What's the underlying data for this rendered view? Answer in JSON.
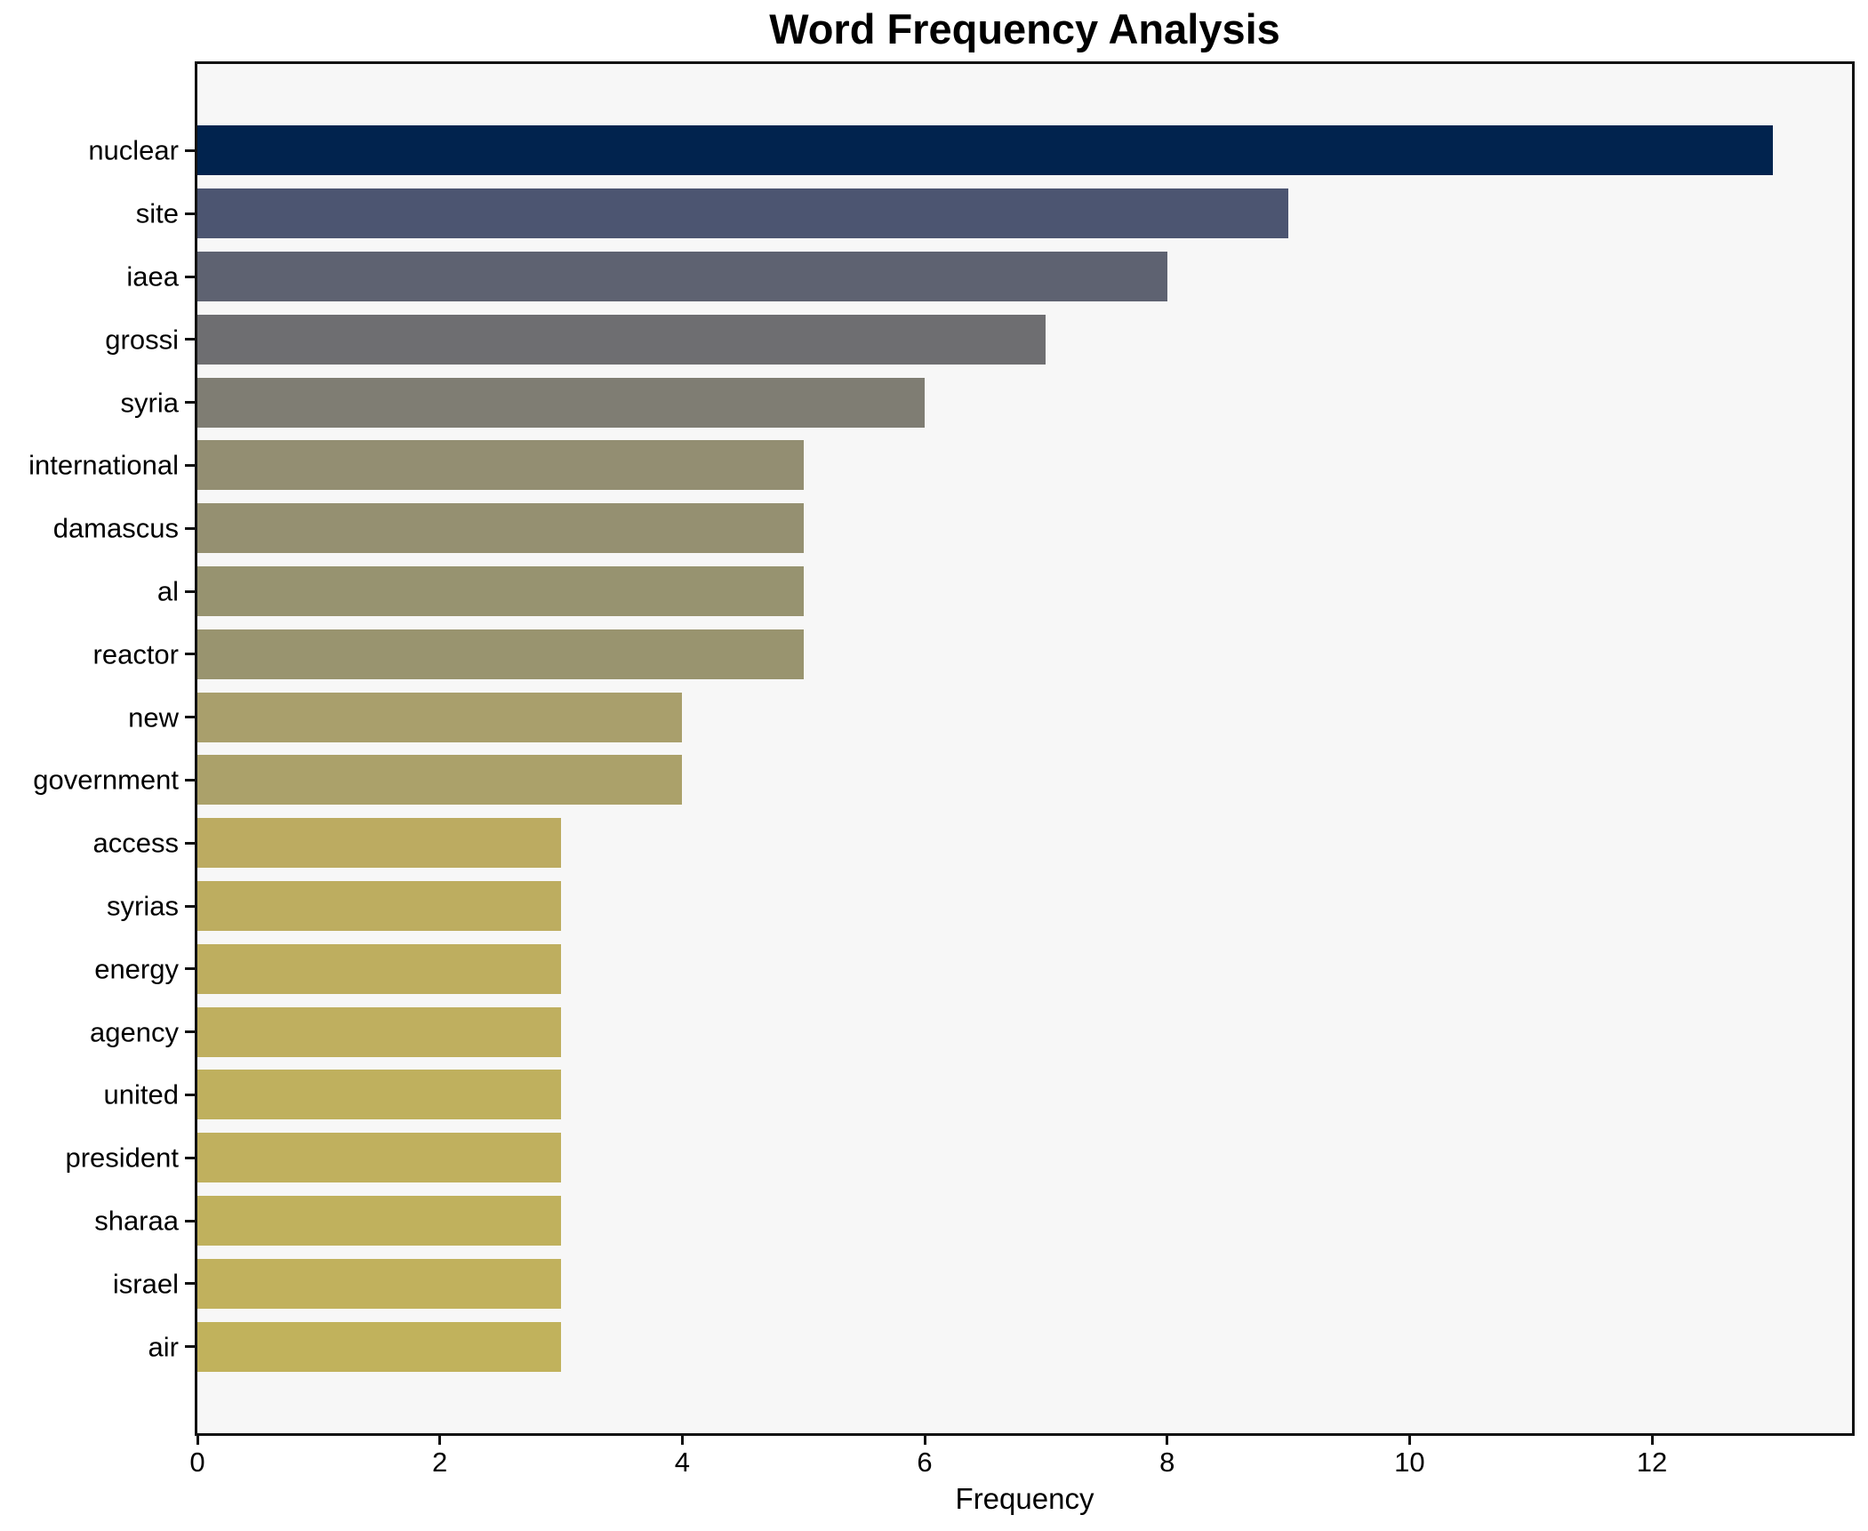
{
  "chart_data": {
    "type": "bar",
    "orientation": "horizontal",
    "title": "Word Frequency Analysis",
    "xlabel": "Frequency",
    "ylabel": "",
    "categories": [
      "nuclear",
      "site",
      "iaea",
      "grossi",
      "syria",
      "international",
      "damascus",
      "al",
      "reactor",
      "new",
      "government",
      "access",
      "syrias",
      "energy",
      "agency",
      "united",
      "president",
      "sharaa",
      "israel",
      "air"
    ],
    "values": [
      13,
      9,
      8,
      7,
      6,
      5,
      5,
      5,
      5,
      4,
      4,
      3,
      3,
      3,
      3,
      3,
      3,
      3,
      3,
      3
    ],
    "x_ticks": [
      0,
      2,
      4,
      6,
      8,
      10,
      12
    ],
    "xlim": [
      0,
      13.65
    ],
    "grid": false,
    "legend": "none",
    "plot_background": "#f7f7f7",
    "figure_background": "#ffffff",
    "spine_color": "#111111",
    "bar_colors": [
      "#01234e",
      "#4c5571",
      "#5e6271",
      "#6e6e71",
      "#7f7d73",
      "#938e72",
      "#959071",
      "#979370",
      "#99946f",
      "#a99f6c",
      "#aba16a",
      "#bcab61",
      "#bdad60",
      "#beae5f",
      "#bfaf5f",
      "#bfb05e",
      "#c0b05e",
      "#c0b15d",
      "#c1b15d",
      "#c1b25c"
    ]
  }
}
